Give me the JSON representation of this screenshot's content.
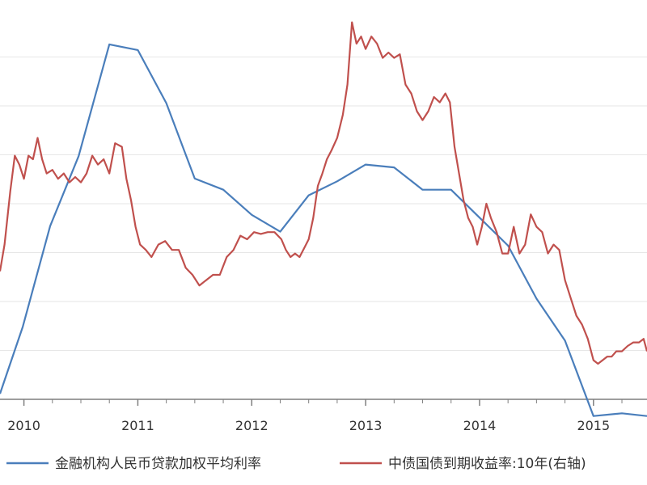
{
  "chart_data": {
    "type": "line",
    "title": "",
    "grid": true,
    "legend_position": "bottom",
    "x_ticks": [
      {
        "label": "2010",
        "x": 2010.0
      },
      {
        "label": "2011",
        "x": 2011.0
      },
      {
        "label": "2012",
        "x": 2012.0
      },
      {
        "label": "2013",
        "x": 2013.0
      },
      {
        "label": "2014",
        "x": 2014.0
      },
      {
        "label": "2015",
        "x": 2015.0
      }
    ],
    "xlim": [
      2009.79,
      2015.47
    ],
    "ylim_left": [
      5.6,
      7.0
    ],
    "ylim_right": [
      2.58,
      4.78
    ],
    "series": [
      {
        "name": "金融机构人民币贷款加权平均利率",
        "color": "#4a7ebb",
        "axis": "left",
        "points": [
          [
            2009.79,
            5.62
          ],
          [
            2009.99,
            5.86
          ],
          [
            2010.23,
            6.22
          ],
          [
            2010.48,
            6.47
          ],
          [
            2010.75,
            6.87
          ],
          [
            2011.0,
            6.85
          ],
          [
            2011.25,
            6.66
          ],
          [
            2011.5,
            6.39
          ],
          [
            2011.75,
            6.35
          ],
          [
            2012.0,
            6.26
          ],
          [
            2012.25,
            6.2
          ],
          [
            2012.5,
            6.33
          ],
          [
            2012.75,
            6.38
          ],
          [
            2013.0,
            6.44
          ],
          [
            2013.25,
            6.43
          ],
          [
            2013.5,
            6.35
          ],
          [
            2013.75,
            6.35
          ],
          [
            2014.0,
            6.25
          ],
          [
            2014.25,
            6.15
          ],
          [
            2014.5,
            5.96
          ],
          [
            2014.75,
            5.81
          ],
          [
            2015.0,
            5.54
          ],
          [
            2015.25,
            5.55
          ],
          [
            2015.47,
            5.54
          ]
        ]
      },
      {
        "name": "中债国债到期收益率:10年(右轴)",
        "color": "#c0504d",
        "axis": "right",
        "points": [
          [
            2009.79,
            3.3
          ],
          [
            2009.83,
            3.45
          ],
          [
            2009.88,
            3.75
          ],
          [
            2009.92,
            3.95
          ],
          [
            2009.96,
            3.9
          ],
          [
            2010.0,
            3.82
          ],
          [
            2010.04,
            3.95
          ],
          [
            2010.08,
            3.93
          ],
          [
            2010.12,
            4.05
          ],
          [
            2010.16,
            3.93
          ],
          [
            2010.2,
            3.85
          ],
          [
            2010.25,
            3.87
          ],
          [
            2010.3,
            3.82
          ],
          [
            2010.35,
            3.85
          ],
          [
            2010.4,
            3.8
          ],
          [
            2010.45,
            3.83
          ],
          [
            2010.5,
            3.8
          ],
          [
            2010.55,
            3.85
          ],
          [
            2010.6,
            3.95
          ],
          [
            2010.65,
            3.9
          ],
          [
            2010.7,
            3.93
          ],
          [
            2010.75,
            3.85
          ],
          [
            2010.8,
            4.02
          ],
          [
            2010.86,
            4.0
          ],
          [
            2010.9,
            3.82
          ],
          [
            2010.94,
            3.7
          ],
          [
            2010.98,
            3.55
          ],
          [
            2011.02,
            3.45
          ],
          [
            2011.07,
            3.42
          ],
          [
            2011.12,
            3.38
          ],
          [
            2011.18,
            3.45
          ],
          [
            2011.24,
            3.47
          ],
          [
            2011.3,
            3.42
          ],
          [
            2011.36,
            3.42
          ],
          [
            2011.42,
            3.32
          ],
          [
            2011.48,
            3.28
          ],
          [
            2011.54,
            3.22
          ],
          [
            2011.6,
            3.25
          ],
          [
            2011.66,
            3.28
          ],
          [
            2011.72,
            3.28
          ],
          [
            2011.78,
            3.38
          ],
          [
            2011.84,
            3.42
          ],
          [
            2011.9,
            3.5
          ],
          [
            2011.96,
            3.48
          ],
          [
            2012.02,
            3.52
          ],
          [
            2012.08,
            3.51
          ],
          [
            2012.14,
            3.52
          ],
          [
            2012.2,
            3.52
          ],
          [
            2012.26,
            3.48
          ],
          [
            2012.3,
            3.42
          ],
          [
            2012.34,
            3.38
          ],
          [
            2012.38,
            3.4
          ],
          [
            2012.42,
            3.38
          ],
          [
            2012.46,
            3.43
          ],
          [
            2012.5,
            3.48
          ],
          [
            2012.54,
            3.6
          ],
          [
            2012.58,
            3.78
          ],
          [
            2012.62,
            3.85
          ],
          [
            2012.66,
            3.93
          ],
          [
            2012.7,
            3.98
          ],
          [
            2012.75,
            4.05
          ],
          [
            2012.8,
            4.18
          ],
          [
            2012.84,
            4.35
          ],
          [
            2012.88,
            4.7
          ],
          [
            2012.92,
            4.58
          ],
          [
            2012.96,
            4.62
          ],
          [
            2013.0,
            4.55
          ],
          [
            2013.05,
            4.62
          ],
          [
            2013.1,
            4.58
          ],
          [
            2013.15,
            4.5
          ],
          [
            2013.2,
            4.53
          ],
          [
            2013.25,
            4.5
          ],
          [
            2013.3,
            4.52
          ],
          [
            2013.35,
            4.35
          ],
          [
            2013.4,
            4.3
          ],
          [
            2013.45,
            4.2
          ],
          [
            2013.5,
            4.15
          ],
          [
            2013.55,
            4.2
          ],
          [
            2013.6,
            4.28
          ],
          [
            2013.65,
            4.25
          ],
          [
            2013.7,
            4.3
          ],
          [
            2013.74,
            4.25
          ],
          [
            2013.78,
            4.0
          ],
          [
            2013.82,
            3.85
          ],
          [
            2013.86,
            3.7
          ],
          [
            2013.9,
            3.6
          ],
          [
            2013.94,
            3.55
          ],
          [
            2013.98,
            3.45
          ],
          [
            2014.02,
            3.55
          ],
          [
            2014.06,
            3.68
          ],
          [
            2014.1,
            3.6
          ],
          [
            2014.15,
            3.52
          ],
          [
            2014.2,
            3.4
          ],
          [
            2014.25,
            3.4
          ],
          [
            2014.3,
            3.55
          ],
          [
            2014.35,
            3.4
          ],
          [
            2014.4,
            3.45
          ],
          [
            2014.45,
            3.62
          ],
          [
            2014.5,
            3.55
          ],
          [
            2014.55,
            3.52
          ],
          [
            2014.6,
            3.4
          ],
          [
            2014.65,
            3.45
          ],
          [
            2014.7,
            3.42
          ],
          [
            2014.75,
            3.25
          ],
          [
            2014.8,
            3.15
          ],
          [
            2014.85,
            3.05
          ],
          [
            2014.9,
            3.0
          ],
          [
            2014.95,
            2.92
          ],
          [
            2015.0,
            2.8
          ],
          [
            2015.04,
            2.78
          ],
          [
            2015.08,
            2.8
          ],
          [
            2015.12,
            2.82
          ],
          [
            2015.16,
            2.82
          ],
          [
            2015.2,
            2.85
          ],
          [
            2015.25,
            2.85
          ],
          [
            2015.3,
            2.88
          ],
          [
            2015.35,
            2.9
          ],
          [
            2015.4,
            2.9
          ],
          [
            2015.44,
            2.92
          ],
          [
            2015.47,
            2.85
          ]
        ]
      }
    ]
  }
}
